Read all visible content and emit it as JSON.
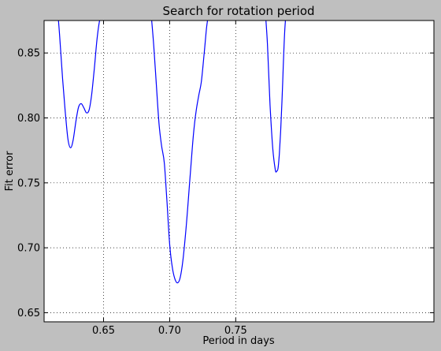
{
  "chart_data": {
    "type": "line",
    "title": "Search for rotation period",
    "xlabel": "Period in days",
    "ylabel": "Fit error",
    "xlim": [
      0.605,
      0.9
    ],
    "ylim": [
      0.643,
      0.875
    ],
    "xticks": [
      0.65,
      0.7,
      0.75
    ],
    "xtick_labels": [
      "0.65",
      "0.70",
      "0.75"
    ],
    "yticks": [
      0.65,
      0.7,
      0.75,
      0.8,
      0.85
    ],
    "ytick_labels": [
      "0.65",
      "0.70",
      "0.75",
      "0.80",
      "0.85"
    ],
    "grid": true,
    "line_color": "#0000ff",
    "series": [
      {
        "x": [
          0.6155,
          0.617,
          0.619,
          0.621,
          0.623,
          0.625,
          0.627,
          0.629,
          0.631,
          0.633,
          0.635,
          0.637,
          0.639,
          0.641,
          0.643,
          0.645,
          0.647,
          0.649,
          0.6505
        ],
        "y": [
          0.88,
          0.86,
          0.83,
          0.805,
          0.784,
          0.777,
          0.783,
          0.797,
          0.808,
          0.811,
          0.808,
          0.804,
          0.806,
          0.818,
          0.838,
          0.86,
          0.875,
          0.88,
          0.88
        ]
      },
      {
        "x": [
          0.686,
          0.688,
          0.69,
          0.692,
          0.694,
          0.696,
          0.698,
          0.7,
          0.702,
          0.704,
          0.706,
          0.708,
          0.71,
          0.712,
          0.714,
          0.716,
          0.718,
          0.72,
          0.722,
          0.724,
          0.726,
          0.728,
          0.7295
        ],
        "y": [
          0.88,
          0.855,
          0.825,
          0.795,
          0.778,
          0.765,
          0.735,
          0.703,
          0.685,
          0.676,
          0.673,
          0.677,
          0.69,
          0.71,
          0.735,
          0.762,
          0.787,
          0.805,
          0.817,
          0.828,
          0.848,
          0.87,
          0.88
        ]
      },
      {
        "x": [
          0.7725,
          0.774,
          0.776,
          0.778,
          0.78,
          0.781,
          0.782,
          0.783,
          0.784,
          0.785,
          0.786,
          0.787,
          0.788
        ],
        "y": [
          0.88,
          0.857,
          0.81,
          0.777,
          0.76,
          0.759,
          0.761,
          0.772,
          0.79,
          0.812,
          0.84,
          0.865,
          0.88
        ]
      }
    ]
  }
}
